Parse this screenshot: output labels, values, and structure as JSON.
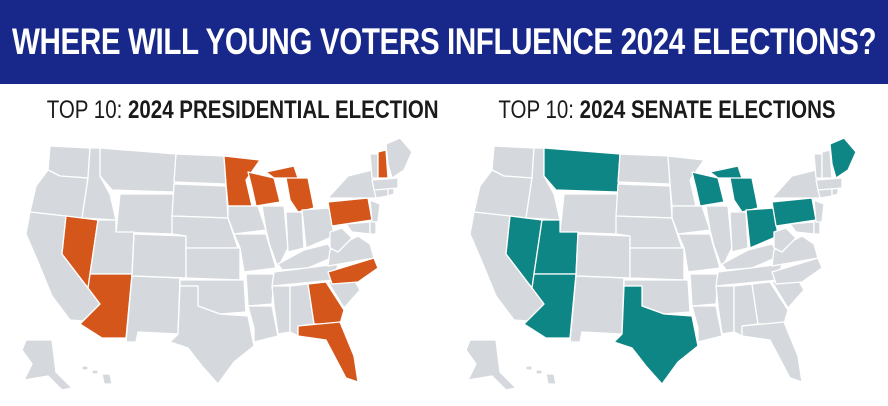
{
  "header": {
    "title": "WHERE WILL YOUNG VOTERS INFLUENCE 2024 ELECTIONS?",
    "background": "#18278a"
  },
  "colors": {
    "base_state": "#d5d8dd",
    "presidential_highlight": "#d5561a",
    "senate_highlight": "#0f8686"
  },
  "maps": [
    {
      "title_lead": "TOP 10: ",
      "title_bold": "2024 PRESIDENTIAL ELECTION",
      "highlight_color": "#d5561a",
      "highlighted_states": [
        "NV",
        "AZ",
        "MN",
        "WI",
        "MI",
        "PA",
        "NH",
        "NC",
        "GA",
        "FL"
      ]
    },
    {
      "title_lead": "TOP 10: ",
      "title_bold": "2024 SENATE ELECTIONS",
      "highlight_color": "#0f8686",
      "highlighted_states": [
        "NV",
        "UT",
        "AZ",
        "MT",
        "TX",
        "WI",
        "MI",
        "OH",
        "PA",
        "ME"
      ]
    }
  ]
}
